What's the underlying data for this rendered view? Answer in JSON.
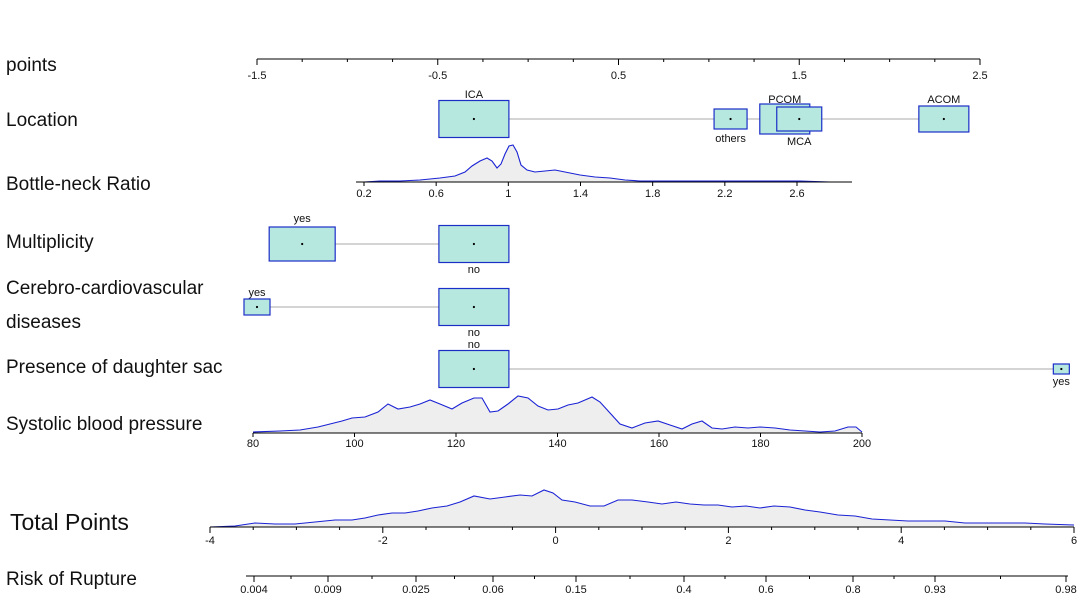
{
  "chart_data": {
    "type": "nomogram",
    "title": "",
    "rows": [
      {
        "label": "points",
        "kind": "axis",
        "ticks": [
          -1.5,
          -0.5,
          0.5,
          1.5,
          2.5
        ],
        "tick_labels": [
          "-1.5",
          "-0.5",
          "0.5",
          "1.5",
          "2.5"
        ]
      },
      {
        "label": "Location",
        "kind": "categorical",
        "levels": [
          {
            "name": "ICA",
            "points": -0.3
          },
          {
            "name": "others",
            "points": 1.12
          },
          {
            "name": "PCOM",
            "points": 1.42
          },
          {
            "name": "MCA",
            "points": 1.5
          },
          {
            "name": "ACOM",
            "points": 2.3
          }
        ]
      },
      {
        "label": "Bottle-neck Ratio",
        "kind": "continuous",
        "ticks": [
          0.2,
          0.6,
          1,
          1.4,
          1.8,
          2.2,
          2.6
        ],
        "tick_labels": [
          "0.2",
          "0.6",
          "1",
          "1.4",
          "1.8",
          "2.2",
          "2.6"
        ]
      },
      {
        "label": "Multiplicity",
        "kind": "categorical",
        "levels": [
          {
            "name": "yes",
            "points": -1.25
          },
          {
            "name": "no",
            "points": -0.3
          }
        ]
      },
      {
        "label": "Cerebro-cardiovascular diseases",
        "label_lines": [
          "Cerebro-cardiovascular",
          "diseases"
        ],
        "kind": "categorical",
        "levels": [
          {
            "name": "yes",
            "points": -1.5
          },
          {
            "name": "no",
            "points": -0.3
          }
        ]
      },
      {
        "label": "Presence of daughter sac",
        "kind": "categorical",
        "levels": [
          {
            "name": "no",
            "points": -0.3
          },
          {
            "name": "yes",
            "points": 2.95
          }
        ]
      },
      {
        "label": "Systolic blood pressure",
        "kind": "continuous",
        "ticks": [
          80,
          100,
          120,
          140,
          160,
          180,
          200
        ],
        "tick_labels": [
          "80",
          "100",
          "120",
          "140",
          "160",
          "180",
          "200"
        ]
      },
      {
        "label": "Total Points",
        "kind": "axis",
        "ticks": [
          -4,
          -2,
          0,
          2,
          4,
          6
        ],
        "tick_labels": [
          "-4",
          "-2",
          "0",
          "2",
          "4",
          "6"
        ]
      },
      {
        "label": "Risk of Rupture",
        "kind": "axis",
        "ticks": [
          0.004,
          0.009,
          0.025,
          0.06,
          0.15,
          0.4,
          0.6,
          0.8,
          0.93,
          0.98
        ],
        "tick_labels": [
          "0.004",
          "0.009",
          "0.025",
          "0.06",
          "0.15",
          "0.4",
          "0.6",
          "0.8",
          "0.93",
          "0.98"
        ]
      }
    ],
    "colors": {
      "box_fill": "#b6e8df",
      "box_stroke": "#1c2ec8",
      "density_line": "#1a22d4",
      "density_fill": "#eeeeee",
      "connector": "#a8a8a8",
      "axis": "#000000"
    }
  }
}
